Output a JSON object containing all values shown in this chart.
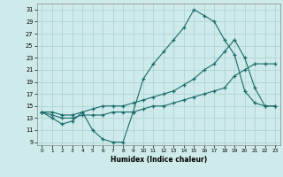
{
  "xlabel": "Humidex (Indice chaleur)",
  "xlim": [
    -0.5,
    23.5
  ],
  "ylim": [
    8.5,
    32
  ],
  "yticks": [
    9,
    11,
    13,
    15,
    17,
    19,
    21,
    23,
    25,
    27,
    29,
    31
  ],
  "xticks": [
    0,
    1,
    2,
    3,
    4,
    5,
    6,
    7,
    8,
    9,
    10,
    11,
    12,
    13,
    14,
    15,
    16,
    17,
    18,
    19,
    20,
    21,
    22,
    23
  ],
  "bg_color": "#ceeaea",
  "line_color": "#1a6b6b",
  "grid_color": "#aacfcf",
  "line1_x": [
    0,
    1,
    2,
    3,
    4,
    5,
    6,
    7,
    8,
    9,
    10,
    11,
    12,
    13,
    14,
    15,
    16,
    17,
    18,
    19,
    20,
    21,
    22,
    23
  ],
  "line1_y": [
    14,
    13,
    12,
    12.5,
    14,
    11,
    9.5,
    9,
    9,
    14,
    19.5,
    22,
    24,
    26,
    28,
    31,
    30,
    29,
    26,
    23.5,
    17.5,
    15.5,
    15,
    15
  ],
  "line2_x": [
    0,
    1,
    2,
    3,
    4,
    5,
    6,
    7,
    8,
    9,
    10,
    11,
    12,
    13,
    14,
    15,
    16,
    17,
    18,
    19,
    20,
    21,
    22,
    23
  ],
  "line2_y": [
    14,
    14,
    13.5,
    13.5,
    14,
    14.5,
    15,
    15,
    15,
    15.5,
    16,
    16.5,
    17,
    17.5,
    18.5,
    19.5,
    21,
    22,
    24,
    26,
    23,
    18,
    15,
    15
  ],
  "line3_x": [
    0,
    1,
    2,
    3,
    4,
    5,
    6,
    7,
    8,
    9,
    10,
    11,
    12,
    13,
    14,
    15,
    16,
    17,
    18,
    19,
    20,
    21,
    22,
    23
  ],
  "line3_y": [
    14,
    13.5,
    13,
    13,
    13.5,
    13.5,
    13.5,
    14,
    14,
    14,
    14.5,
    15,
    15,
    15.5,
    16,
    16.5,
    17,
    17.5,
    18,
    20,
    21,
    22,
    22,
    22
  ]
}
